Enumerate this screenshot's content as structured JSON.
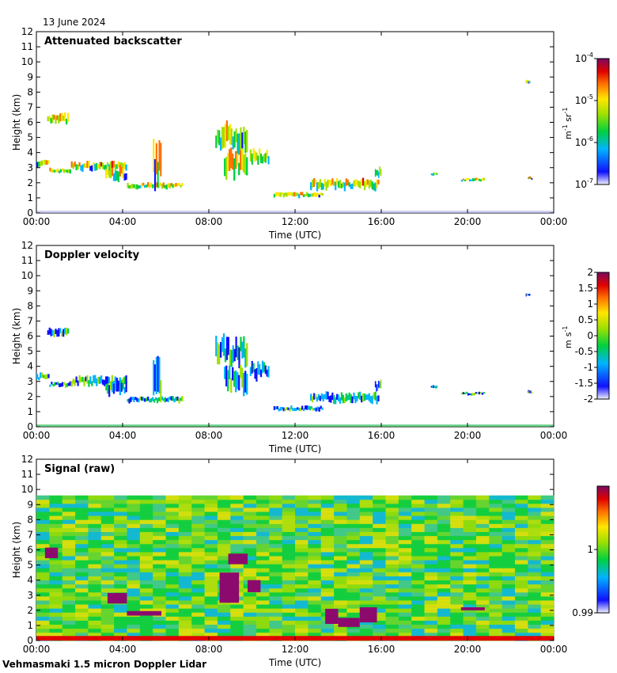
{
  "date": "13 June 2024",
  "footer": "Vehmasmaki 1.5 micron Doppler Lidar",
  "chart_data": [
    {
      "type": "heatmap",
      "title": "Attenuated backscatter",
      "xlabel": "Time (UTC)",
      "ylabel": "Height (km)",
      "x_tick_labels": [
        "00:00",
        "04:00",
        "08:00",
        "12:00",
        "16:00",
        "20:00",
        "00:00"
      ],
      "y_tick_labels": [
        "0",
        "1",
        "2",
        "3",
        "4",
        "5",
        "6",
        "7",
        "8",
        "9",
        "10",
        "11",
        "12"
      ],
      "ylim": [
        0,
        12
      ],
      "xlim_hours": [
        0,
        24
      ],
      "colorbar": {
        "scale": "log",
        "range": [
          1e-07,
          0.0001
        ],
        "tick_labels": [
          {
            "mant": "10",
            "exp": "-4"
          },
          {
            "mant": "10",
            "exp": "-5"
          },
          {
            "mant": "10",
            "exp": "-6"
          },
          {
            "mant": "10",
            "exp": "-7"
          }
        ],
        "unit": {
          "a": "m",
          "a_exp": "-1",
          "b": "sr",
          "b_exp": "-1"
        }
      },
      "features": [
        {
          "t0": 0.0,
          "t1": 0.6,
          "h": 3.3,
          "dh": 0.4
        },
        {
          "t0": 0.6,
          "t1": 1.6,
          "h": 2.8,
          "dh": 0.3
        },
        {
          "t0": 1.6,
          "t1": 4.2,
          "h": 3.1,
          "dh": 0.5
        },
        {
          "t0": 3.2,
          "t1": 4.2,
          "h": 2.6,
          "dh": 0.8
        },
        {
          "t0": 4.2,
          "t1": 6.8,
          "h": 1.8,
          "dh": 0.35
        },
        {
          "t0": 5.4,
          "t1": 5.8,
          "h": 3.1,
          "dh": 2.6
        },
        {
          "t0": 0.5,
          "t1": 1.5,
          "h": 6.2,
          "dh": 0.6
        },
        {
          "t0": 8.3,
          "t1": 9.8,
          "h": 5.0,
          "dh": 1.6
        },
        {
          "t0": 8.7,
          "t1": 9.8,
          "h": 3.2,
          "dh": 1.6
        },
        {
          "t0": 9.9,
          "t1": 10.8,
          "h": 3.7,
          "dh": 0.9
        },
        {
          "t0": 11.0,
          "t1": 13.3,
          "h": 1.2,
          "dh": 0.3
        },
        {
          "t0": 12.7,
          "t1": 15.9,
          "h": 1.9,
          "dh": 0.6
        },
        {
          "t0": 15.7,
          "t1": 16.0,
          "h": 2.7,
          "dh": 0.6
        },
        {
          "t0": 18.3,
          "t1": 18.6,
          "h": 2.6,
          "dh": 0.2
        },
        {
          "t0": 19.7,
          "t1": 20.8,
          "h": 2.2,
          "dh": 0.2
        },
        {
          "t0": 22.7,
          "t1": 22.9,
          "h": 8.7,
          "dh": 0.2
        },
        {
          "t0": 22.8,
          "t1": 23.0,
          "h": 2.3,
          "dh": 0.2
        }
      ]
    },
    {
      "type": "heatmap",
      "title": "Doppler velocity",
      "xlabel": "Time (UTC)",
      "ylabel": "Height (km)",
      "x_tick_labels": [
        "00:00",
        "04:00",
        "08:00",
        "12:00",
        "16:00",
        "20:00",
        "00:00"
      ],
      "y_tick_labels": [
        "0",
        "1",
        "2",
        "3",
        "4",
        "5",
        "6",
        "7",
        "8",
        "9",
        "10",
        "11",
        "12"
      ],
      "ylim": [
        0,
        12
      ],
      "xlim_hours": [
        0,
        24
      ],
      "colorbar": {
        "scale": "linear",
        "range": [
          -2,
          2
        ],
        "tick_labels": [
          "2",
          "1.5",
          "1",
          "0.5",
          "0",
          "-0.5",
          "-1",
          "-1.5",
          "-2"
        ],
        "unit": {
          "a": "m",
          "a_exp": "",
          "b": "s",
          "b_exp": "-1"
        }
      },
      "features": [
        {
          "t0": 0.0,
          "t1": 0.6,
          "h": 3.3,
          "dh": 0.4
        },
        {
          "t0": 0.6,
          "t1": 1.6,
          "h": 2.8,
          "dh": 0.3
        },
        {
          "t0": 1.6,
          "t1": 4.2,
          "h": 3.0,
          "dh": 0.6
        },
        {
          "t0": 3.2,
          "t1": 4.2,
          "h": 2.6,
          "dh": 0.8
        },
        {
          "t0": 4.2,
          "t1": 6.8,
          "h": 1.8,
          "dh": 0.35
        },
        {
          "t0": 5.4,
          "t1": 5.8,
          "h": 3.1,
          "dh": 2.6
        },
        {
          "t0": 0.5,
          "t1": 1.5,
          "h": 6.2,
          "dh": 0.6
        },
        {
          "t0": 8.3,
          "t1": 9.8,
          "h": 5.0,
          "dh": 1.6
        },
        {
          "t0": 8.7,
          "t1": 9.8,
          "h": 3.2,
          "dh": 1.6
        },
        {
          "t0": 9.9,
          "t1": 10.8,
          "h": 3.7,
          "dh": 0.9
        },
        {
          "t0": 11.0,
          "t1": 13.3,
          "h": 1.2,
          "dh": 0.3
        },
        {
          "t0": 12.7,
          "t1": 15.9,
          "h": 1.9,
          "dh": 0.6
        },
        {
          "t0": 15.7,
          "t1": 16.0,
          "h": 2.7,
          "dh": 0.6
        },
        {
          "t0": 18.3,
          "t1": 18.6,
          "h": 2.6,
          "dh": 0.2
        },
        {
          "t0": 19.7,
          "t1": 20.8,
          "h": 2.2,
          "dh": 0.2
        },
        {
          "t0": 22.7,
          "t1": 22.9,
          "h": 8.7,
          "dh": 0.2
        },
        {
          "t0": 22.8,
          "t1": 23.0,
          "h": 2.3,
          "dh": 0.2
        }
      ]
    },
    {
      "type": "heatmap",
      "title": "Signal (raw)",
      "xlabel": "Time (UTC)",
      "ylabel": "Height (km)",
      "x_tick_labels": [
        "00:00",
        "04:00",
        "08:00",
        "12:00",
        "16:00",
        "20:00",
        "00:00"
      ],
      "y_tick_labels": [
        "0",
        "1",
        "2",
        "3",
        "4",
        "5",
        "6",
        "7",
        "8",
        "9",
        "10",
        "11",
        "12"
      ],
      "ylim": [
        0,
        12
      ],
      "xlim_hours": [
        0,
        24
      ],
      "data_top_km": 9.6,
      "colorbar": {
        "scale": "linear",
        "range": [
          0.99,
          1.01
        ],
        "tick_labels": [
          "1",
          "0.99"
        ],
        "tick_values": [
          1.0,
          0.99
        ]
      },
      "features": [
        {
          "t0": 3.3,
          "t1": 4.2,
          "h": 2.8,
          "dh": 0.7
        },
        {
          "t0": 4.2,
          "t1": 5.8,
          "h": 1.8,
          "dh": 0.3
        },
        {
          "t0": 8.5,
          "t1": 9.4,
          "h": 3.5,
          "dh": 2.0
        },
        {
          "t0": 8.9,
          "t1": 9.8,
          "h": 5.4,
          "dh": 0.7
        },
        {
          "t0": 9.8,
          "t1": 10.4,
          "h": 3.6,
          "dh": 0.8
        },
        {
          "t0": 13.4,
          "t1": 14.0,
          "h": 1.6,
          "dh": 1.0
        },
        {
          "t0": 14.0,
          "t1": 15.0,
          "h": 1.2,
          "dh": 0.6
        },
        {
          "t0": 15.0,
          "t1": 15.8,
          "h": 1.7,
          "dh": 1.0
        },
        {
          "t0": 0.4,
          "t1": 1.0,
          "h": 5.8,
          "dh": 0.7
        },
        {
          "t0": 19.7,
          "t1": 20.8,
          "h": 2.1,
          "dh": 0.2
        }
      ]
    }
  ]
}
